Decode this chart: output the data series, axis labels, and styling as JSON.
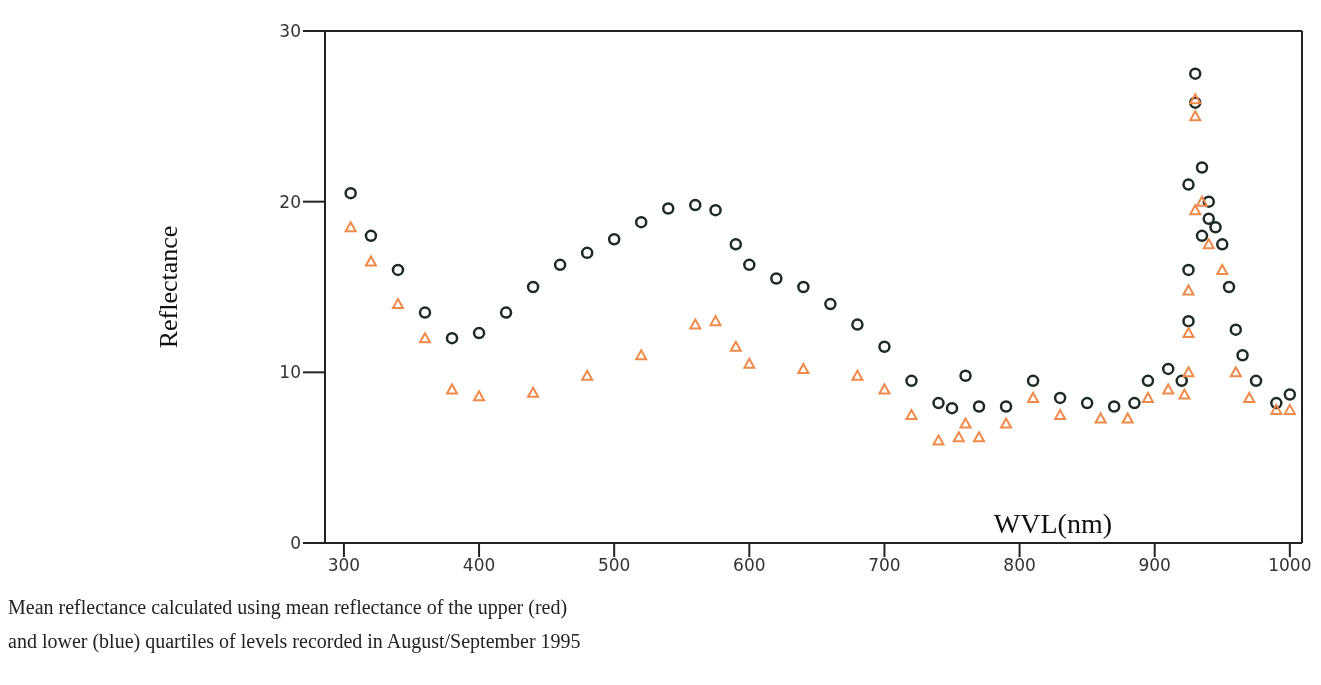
{
  "chart_data": {
    "type": "scatter",
    "xlabel": "WVL(nm)",
    "ylabel": "Reflectance",
    "xlim": [
      286,
      1009
    ],
    "xticks": [
      300,
      400,
      500,
      600,
      700,
      800,
      900,
      1000
    ],
    "ylim": [
      0,
      30
    ],
    "yticks": [
      0,
      10,
      20,
      30
    ],
    "annotations": [
      "Mean reflectance calculated using mean reflectance of the upper (red)",
      "and lower (blue) quartiles of levels recorded in August/September 1995"
    ],
    "series": [
      {
        "color": "#1e2a24",
        "marker": "circle",
        "x": [
          305,
          320,
          340,
          360,
          380,
          400,
          420,
          440,
          460,
          480,
          500,
          520,
          540,
          560,
          575,
          590,
          600,
          620,
          640,
          660,
          680,
          700,
          720,
          740,
          750,
          760,
          770,
          790,
          810,
          830,
          850,
          870,
          885,
          895,
          910,
          920,
          925,
          925,
          925,
          930,
          930,
          935,
          935,
          940,
          940,
          945,
          950,
          955,
          960,
          965,
          975,
          990,
          1000
        ],
        "values": [
          20.5,
          18,
          16,
          13.5,
          12,
          12.3,
          13.5,
          15,
          16.3,
          17,
          17.8,
          18.8,
          19.6,
          19.8,
          19.5,
          17.5,
          16.3,
          15.5,
          15,
          14,
          12.8,
          11.5,
          9.5,
          8.2,
          7.9,
          9.8,
          8,
          8,
          9.5,
          8.5,
          8.2,
          8,
          8.2,
          9.5,
          10.2,
          9.5,
          13,
          16,
          21,
          25.8,
          27.5,
          22,
          18,
          20,
          19,
          18.5,
          17.5,
          15,
          12.5,
          11,
          9.5,
          8.2,
          8.7
        ]
      },
      {
        "color": "#f08a4b",
        "marker": "triangle",
        "x": [
          305,
          320,
          340,
          360,
          380,
          400,
          440,
          480,
          520,
          560,
          575,
          590,
          600,
          640,
          680,
          700,
          720,
          740,
          755,
          760,
          770,
          790,
          810,
          830,
          860,
          880,
          895,
          910,
          922,
          925,
          925,
          925,
          930,
          930,
          930,
          935,
          940,
          950,
          960,
          970,
          990,
          1000
        ],
        "values": [
          18.5,
          16.5,
          14,
          12,
          9,
          8.6,
          8.8,
          9.8,
          11,
          12.8,
          13,
          11.5,
          10.5,
          10.2,
          9.8,
          9,
          7.5,
          6,
          6.2,
          7,
          6.2,
          7,
          8.5,
          7.5,
          7.3,
          7.3,
          8.5,
          9,
          8.7,
          10,
          12.3,
          14.8,
          19.5,
          25,
          26,
          20,
          17.5,
          16,
          10,
          8.5,
          7.8,
          7.8
        ]
      }
    ]
  }
}
